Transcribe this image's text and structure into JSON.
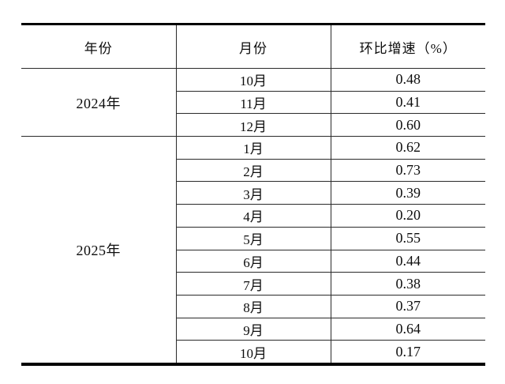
{
  "colors": {
    "background": "#ffffff",
    "thick_rule": "#000000",
    "thin_rule": "#2a2a2a",
    "text": "#0d0d0d"
  },
  "table": {
    "headers": {
      "year": "年份",
      "month": "月份",
      "growth": "环比增速（%）"
    },
    "groups": [
      {
        "year": "2024年",
        "rows": [
          {
            "month": "10月",
            "value": "0.48"
          },
          {
            "month": "11月",
            "value": "0.41"
          },
          {
            "month": "12月",
            "value": "0.60"
          }
        ]
      },
      {
        "year": "2025年",
        "rows": [
          {
            "month": "1月",
            "value": "0.62"
          },
          {
            "month": "2月",
            "value": "0.73"
          },
          {
            "month": "3月",
            "value": "0.39"
          },
          {
            "month": "4月",
            "value": "0.20"
          },
          {
            "month": "5月",
            "value": "0.55"
          },
          {
            "month": "6月",
            "value": "0.44"
          },
          {
            "month": "7月",
            "value": "0.38"
          },
          {
            "month": "8月",
            "value": "0.37"
          },
          {
            "month": "9月",
            "value": "0.64"
          },
          {
            "month": "10月",
            "value": "0.17"
          }
        ]
      }
    ]
  },
  "chart_data": {
    "type": "table",
    "title": "",
    "columns": [
      "年份",
      "月份",
      "环比增速（%）"
    ],
    "rows": [
      [
        "2024年",
        "10月",
        "0.48"
      ],
      [
        "2024年",
        "11月",
        "0.41"
      ],
      [
        "2024年",
        "12月",
        "0.60"
      ],
      [
        "2025年",
        "1月",
        "0.62"
      ],
      [
        "2025年",
        "2月",
        "0.73"
      ],
      [
        "2025年",
        "3月",
        "0.39"
      ],
      [
        "2025年",
        "4月",
        "0.20"
      ],
      [
        "2025年",
        "5月",
        "0.55"
      ],
      [
        "2025年",
        "6月",
        "0.44"
      ],
      [
        "2025年",
        "7月",
        "0.38"
      ],
      [
        "2025年",
        "8月",
        "0.37"
      ],
      [
        "2025年",
        "9月",
        "0.64"
      ],
      [
        "2025年",
        "10月",
        "0.17"
      ]
    ],
    "numeric_values": [
      0.48,
      0.41,
      0.6,
      0.62,
      0.73,
      0.39,
      0.2,
      0.55,
      0.44,
      0.38,
      0.37,
      0.64,
      0.17
    ]
  }
}
